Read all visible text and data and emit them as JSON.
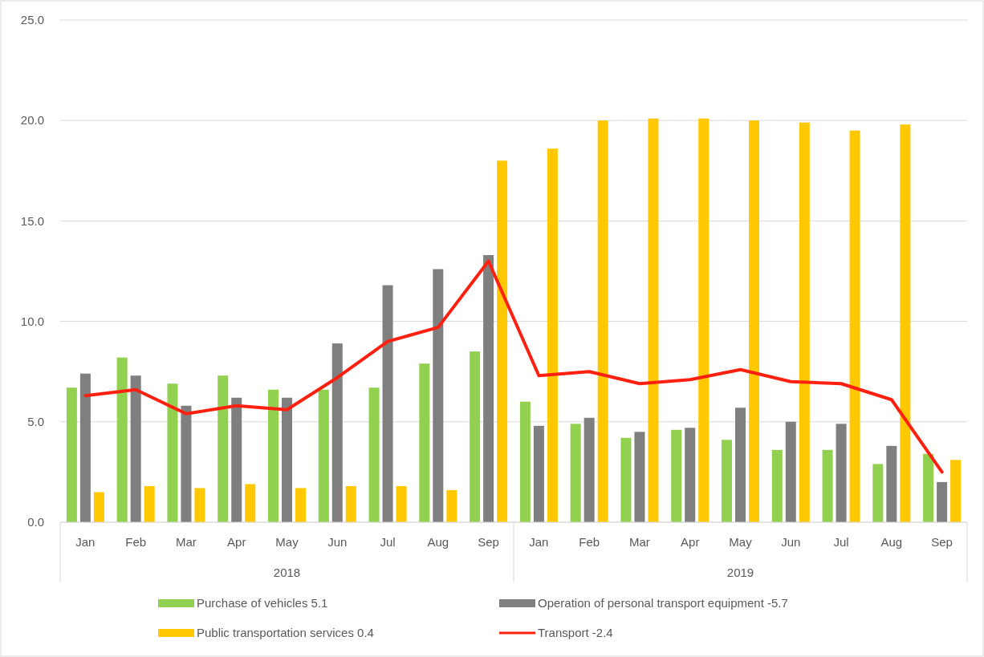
{
  "chart_data": {
    "type": "bar",
    "categories": [
      "Jan",
      "Feb",
      "Mar",
      "Apr",
      "May",
      "Jun",
      "Jul",
      "Aug",
      "Sep",
      "Jan",
      "Feb",
      "Mar",
      "Apr",
      "May",
      "Jun",
      "Jul",
      "Aug",
      "Sep"
    ],
    "series": [
      {
        "name": "Purchase of vehicles  5.1",
        "color": "#92d050",
        "values": [
          6.7,
          8.2,
          6.9,
          7.3,
          6.6,
          6.6,
          6.7,
          7.9,
          8.5,
          6.0,
          4.9,
          4.2,
          4.6,
          4.1,
          3.6,
          3.6,
          2.9,
          3.4
        ]
      },
      {
        "name": "Operation of personal transport equipment -5.7",
        "color": "#7f7f7f",
        "values": [
          7.4,
          7.3,
          5.8,
          6.2,
          6.2,
          8.9,
          11.8,
          12.6,
          13.3,
          4.8,
          5.2,
          4.5,
          4.7,
          5.7,
          5.0,
          4.9,
          3.8,
          2.0
        ]
      },
      {
        "name": "Public transportation services 0.4",
        "color": "#ffc800",
        "values": [
          1.5,
          1.8,
          1.7,
          1.9,
          1.7,
          1.8,
          1.8,
          1.6,
          18.0,
          18.6,
          20.0,
          20.1,
          20.1,
          20.0,
          19.9,
          19.5,
          19.8,
          3.1
        ]
      },
      {
        "name": "Transport -2.4",
        "type": "line",
        "color": "#ff2010",
        "values": [
          6.3,
          6.6,
          5.4,
          5.8,
          5.6,
          7.2,
          9.0,
          9.7,
          13.0,
          7.3,
          7.5,
          6.9,
          7.1,
          7.6,
          7.0,
          6.9,
          6.1,
          2.5
        ]
      }
    ],
    "annotations": [
      "2018",
      "2019"
    ],
    "ylim": [
      0,
      25
    ],
    "yticks": [
      {
        "value": 0,
        "label": "0.0"
      },
      {
        "value": 5,
        "label": "5.0"
      },
      {
        "value": 10,
        "label": "10.0"
      },
      {
        "value": 15,
        "label": "15.0"
      },
      {
        "value": 20,
        "label": "20.0"
      },
      {
        "value": 25,
        "label": "25.0"
      }
    ],
    "grid": "y",
    "legend": "bottom"
  }
}
